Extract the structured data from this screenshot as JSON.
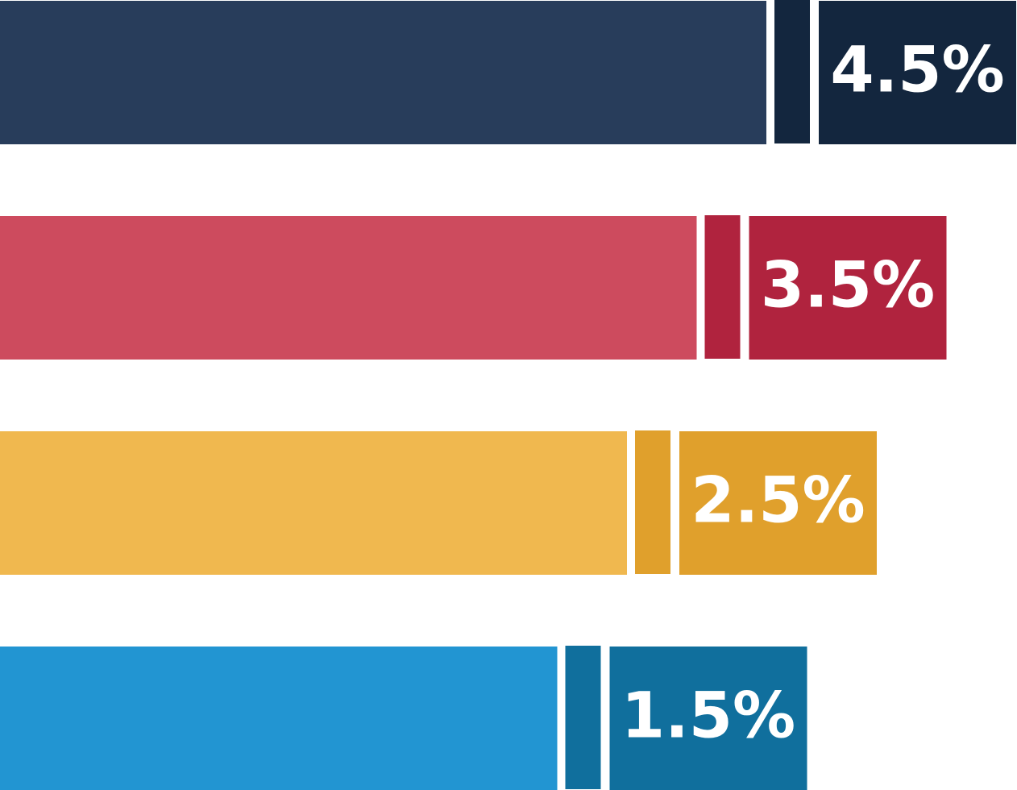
{
  "chart_data": {
    "type": "bar",
    "orientation": "horizontal",
    "title": "",
    "xlabel": "",
    "ylabel": "",
    "values": [
      4.5,
      3.5,
      2.5,
      1.5
    ],
    "value_labels": [
      "4.5%",
      "3.5%",
      "2.5%",
      "1.5%"
    ],
    "colors": [
      {
        "main": "#283d5b",
        "accent": "#13263e"
      },
      {
        "main": "#cd4b5e",
        "accent": "#b0233e"
      },
      {
        "main": "#f0b84f",
        "accent": "#e0a02c"
      },
      {
        "main": "#2295d2",
        "accent": "#106f9d"
      }
    ],
    "axes_visible": false,
    "grid": false,
    "legend": "none"
  }
}
